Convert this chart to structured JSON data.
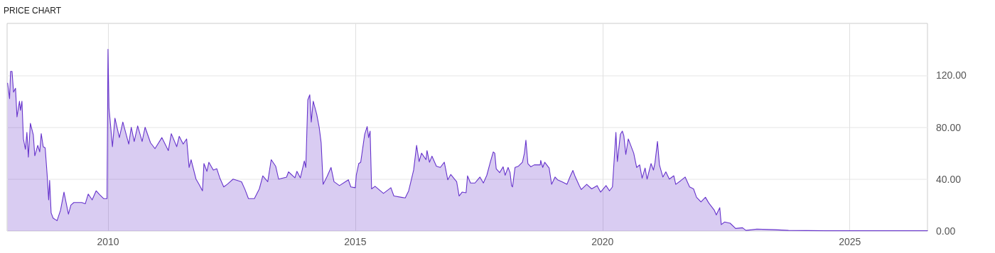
{
  "chart_data": {
    "type": "area",
    "title": "PRICE CHART",
    "x": [
      2007.97,
      2008.01,
      2008.03,
      2008.06,
      2008.09,
      2008.13,
      2008.16,
      2008.21,
      2008.23,
      2008.26,
      2008.29,
      2008.33,
      2008.36,
      2008.39,
      2008.43,
      2008.49,
      2008.52,
      2008.58,
      2008.62,
      2008.65,
      2008.69,
      2008.73,
      2008.77,
      2008.8,
      2008.82,
      2008.85,
      2008.89,
      2008.97,
      2009.04,
      2009.11,
      2009.2,
      2009.25,
      2009.31,
      2009.47,
      2009.54,
      2009.6,
      2009.68,
      2009.76,
      2009.83,
      2009.91,
      2009.98,
      2010.0,
      2010.02,
      2010.09,
      2010.14,
      2010.23,
      2010.3,
      2010.42,
      2010.47,
      2010.53,
      2010.6,
      2010.69,
      2010.75,
      2010.86,
      2010.95,
      2011.09,
      2011.22,
      2011.28,
      2011.39,
      2011.44,
      2011.52,
      2011.59,
      2011.64,
      2011.68,
      2011.78,
      2011.84,
      2011.91,
      2011.94,
      2012.0,
      2012.04,
      2012.13,
      2012.2,
      2012.26,
      2012.34,
      2012.41,
      2012.53,
      2012.7,
      2012.77,
      2012.84,
      2012.96,
      2013.06,
      2013.13,
      2013.23,
      2013.3,
      2013.39,
      2013.45,
      2013.61,
      2013.65,
      2013.78,
      2013.82,
      2013.89,
      2013.97,
      2014.0,
      2014.04,
      2014.08,
      2014.11,
      2014.15,
      2014.22,
      2014.27,
      2014.31,
      2014.35,
      2014.43,
      2014.51,
      2014.57,
      2014.68,
      2014.86,
      2014.91,
      2015.0,
      2015.02,
      2015.07,
      2015.11,
      2015.19,
      2015.24,
      2015.27,
      2015.3,
      2015.33,
      2015.4,
      2015.57,
      2015.72,
      2015.78,
      2015.93,
      2016.01,
      2016.08,
      2016.18,
      2016.24,
      2016.29,
      2016.34,
      2016.43,
      2016.45,
      2016.5,
      2016.55,
      2016.64,
      2016.72,
      2016.8,
      2016.87,
      2016.93,
      2017.05,
      2017.1,
      2017.16,
      2017.24,
      2017.27,
      2017.33,
      2017.42,
      2017.52,
      2017.59,
      2017.66,
      2017.73,
      2017.79,
      2017.82,
      2017.85,
      2017.92,
      2017.99,
      2018.03,
      2018.09,
      2018.13,
      2018.16,
      2018.18,
      2018.23,
      2018.3,
      2018.38,
      2018.42,
      2018.45,
      2018.49,
      2018.55,
      2018.62,
      2018.74,
      2018.75,
      2018.79,
      2018.83,
      2018.92,
      2018.97,
      2019.04,
      2019.09,
      2019.18,
      2019.28,
      2019.34,
      2019.4,
      2019.45,
      2019.53,
      2019.57,
      2019.68,
      2019.78,
      2019.89,
      2019.96,
      2020.07,
      2020.14,
      2020.2,
      2020.27,
      2020.3,
      2020.36,
      2020.4,
      2020.43,
      2020.47,
      2020.52,
      2020.57,
      2020.63,
      2020.69,
      2020.75,
      2020.8,
      2020.86,
      2020.9,
      2020.98,
      2021.03,
      2021.06,
      2021.11,
      2021.15,
      2021.22,
      2021.28,
      2021.35,
      2021.44,
      2021.48,
      2021.58,
      2021.67,
      2021.76,
      2021.84,
      2021.9,
      2021.99,
      2022.08,
      2022.15,
      2022.26,
      2022.3,
      2022.37,
      2022.4,
      2022.47,
      2022.58,
      2022.69,
      2022.83,
      2022.9,
      2023.12,
      2023.48,
      2023.76,
      2024.5,
      2026.57
    ],
    "series": [
      {
        "color": "#6633cc",
        "values": [
          114,
          102,
          123,
          123,
          107,
          110,
          88,
          100,
          93,
          100,
          71,
          63,
          76,
          57,
          83,
          74,
          58,
          66,
          61,
          75,
          65,
          64,
          43,
          24,
          39,
          14,
          10,
          8,
          16,
          30,
          13,
          20,
          22,
          22,
          21,
          28.5,
          24,
          31,
          28,
          25,
          25,
          140,
          95,
          65,
          87,
          72,
          84,
          67,
          80,
          69,
          81,
          69,
          80,
          68,
          63.5,
          72,
          62,
          75,
          65,
          73,
          67,
          71,
          49,
          55,
          40,
          36,
          31,
          52,
          46,
          53,
          47,
          48,
          41,
          34,
          36,
          40,
          38,
          32,
          25,
          25,
          32.5,
          42.5,
          38,
          55,
          50,
          40,
          41.5,
          45.6,
          41,
          46,
          41,
          54,
          49,
          101,
          105,
          84,
          100,
          90,
          80,
          68,
          36,
          42,
          49,
          38,
          35,
          39.5,
          34,
          33.4,
          43,
          52,
          53,
          74.5,
          80.5,
          72,
          77,
          32.5,
          34.5,
          29,
          33.4,
          27,
          26,
          25.5,
          31,
          47,
          66,
          53.5,
          60,
          55,
          62,
          53,
          57.7,
          50,
          49,
          53,
          39.5,
          43.6,
          38,
          27,
          30,
          29.5,
          42.5,
          37,
          37,
          41.6,
          37,
          43,
          53,
          61,
          60,
          48,
          45,
          49.5,
          43,
          49,
          45,
          35,
          34,
          49,
          50,
          53,
          60,
          70,
          52,
          49.5,
          51,
          51,
          54.4,
          49,
          53,
          48.5,
          36,
          41.6,
          39.5,
          38,
          36,
          41.6,
          46.7,
          41.6,
          35,
          32,
          36,
          32.5,
          35,
          30,
          35,
          31,
          34,
          76,
          53.5,
          74.5,
          77,
          73.5,
          59,
          71,
          66,
          60,
          49,
          51,
          40.7,
          48.5,
          40,
          52,
          47,
          52.6,
          69,
          51,
          41.6,
          45.6,
          40,
          42.6,
          36,
          38.8,
          41.6,
          34,
          32.5,
          26,
          22.5,
          26,
          21.5,
          16,
          12.4,
          18,
          5,
          7,
          6,
          2,
          2.5,
          0.5,
          1.5,
          1,
          0.5,
          0.2,
          0.2
        ]
      }
    ],
    "xlim": [
      2007.96,
      2026.57
    ],
    "xticks": [
      2010,
      2015,
      2020,
      2025
    ],
    "ylim": [
      0,
      160
    ],
    "yticks": [
      {
        "value": 0,
        "label": "0.00"
      },
      {
        "value": 40,
        "label": "40.00"
      },
      {
        "value": 80,
        "label": "80.00"
      },
      {
        "value": 120,
        "label": "120.00"
      }
    ],
    "grid": true,
    "marker": "none",
    "line_style": "solid"
  }
}
